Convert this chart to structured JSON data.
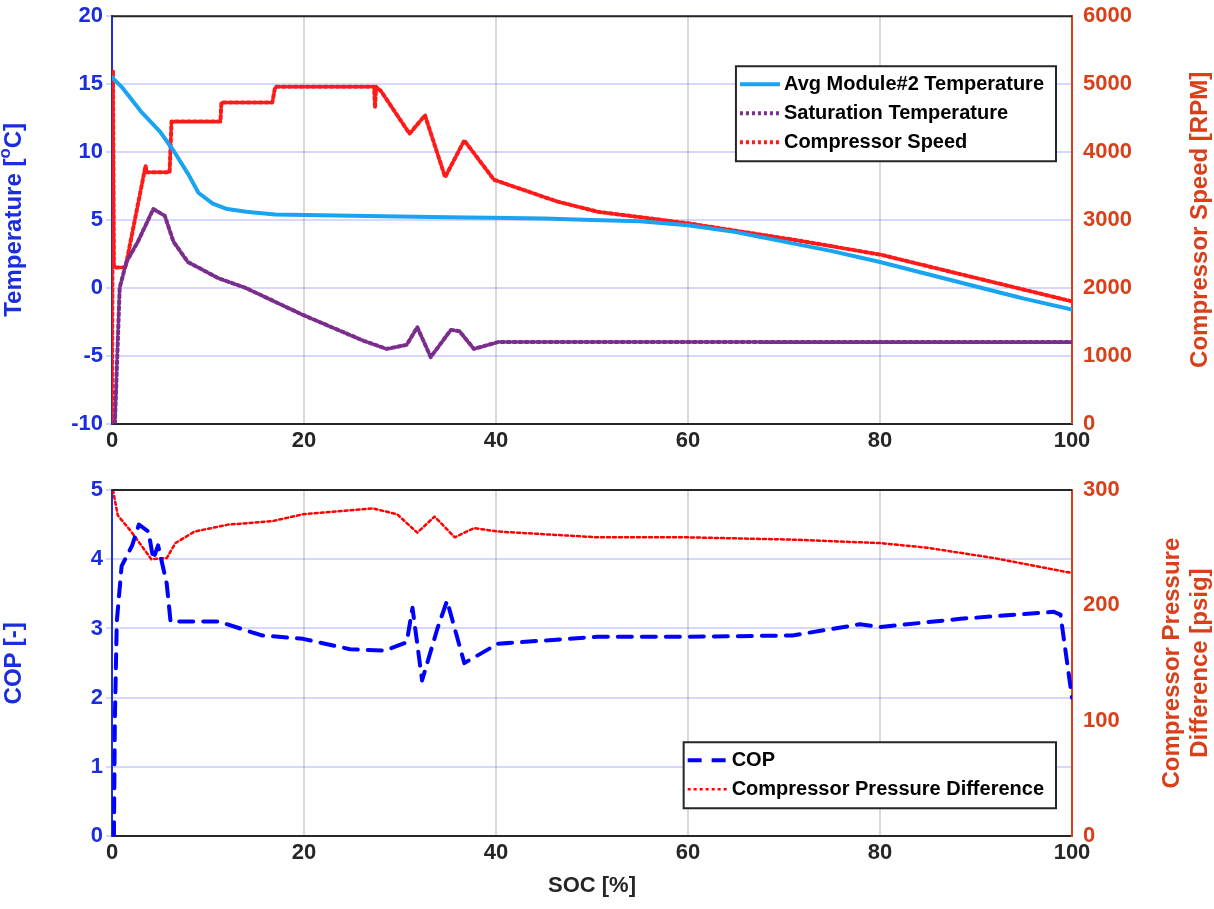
{
  "chart_data": [
    {
      "type": "line",
      "ylabel": "Temperature [$^{o}$C]",
      "y2label": "Compressor Speed [RPM]",
      "xlim": [
        0,
        100
      ],
      "xticks": [
        0,
        20,
        40,
        60,
        80,
        100
      ],
      "ylim": [
        -10,
        20
      ],
      "yticks": [
        -10,
        -5,
        0,
        5,
        10,
        15,
        20
      ],
      "y2lim": [
        0,
        6000
      ],
      "y2ticks": [
        0,
        1000,
        2000,
        3000,
        4000,
        5000,
        6000
      ],
      "grid": true,
      "legend": "top right",
      "marker": "none",
      "series": [
        {
          "name": "Avg Module#2 Temperature",
          "color": "#1aa3f0",
          "line_style": "solid",
          "x": [
            0,
            1,
            3,
            5,
            6.5,
            8,
            9,
            10.5,
            12,
            14,
            17,
            25,
            35,
            45,
            50,
            55,
            60,
            65,
            70,
            75,
            80,
            85,
            90,
            95,
            100
          ],
          "values": [
            15.5,
            14.8,
            13,
            11.5,
            10,
            8.3,
            7,
            6.2,
            5.8,
            5.6,
            5.4,
            5.3,
            5.2,
            5.1,
            5,
            4.9,
            4.6,
            4.1,
            3.4,
            2.7,
            1.9,
            1,
            0.1,
            -0.8,
            -1.6
          ]
        },
        {
          "name": "Saturation Temperature",
          "color": "#7b2d8e",
          "line_style": "dotted",
          "x": [
            0.3,
            0.8,
            1.5,
            2.7,
            4.3,
            5.5,
            6.4,
            7.9,
            11.1,
            13.9,
            19.9,
            26.2,
            28.6,
            30.7,
            31.8,
            33.2,
            35.3,
            36.2,
            37.7,
            40.2,
            50,
            60,
            70,
            80,
            90,
            100
          ],
          "values": [
            -10,
            0,
            1.9,
            3.4,
            5.8,
            5.3,
            3.4,
            1.9,
            0.7,
            0,
            -2,
            -3.9,
            -4.5,
            -4.2,
            -2.9,
            -5.1,
            -3.1,
            -3.2,
            -4.5,
            -4,
            -4,
            -4,
            -4,
            -4,
            -4,
            -4
          ]
        },
        {
          "name": "Compressor Speed",
          "color": "#ff1a1a",
          "line_style": "dotted",
          "axis": "y2",
          "x": [
            0,
            0.1,
            0.2,
            1.4,
            3.5,
            3.6,
            6,
            6.2,
            11.3,
            11.4,
            16.7,
            17,
            27.3,
            27.4,
            27.5,
            28,
            31,
            32.6,
            34.7,
            36.7,
            39.8,
            46.4,
            50.6,
            60,
            70.9,
            80,
            88.4,
            100
          ],
          "values": [
            0,
            5200,
            2300,
            2300,
            3800,
            3700,
            3700,
            4450,
            4450,
            4730,
            4730,
            4960,
            4960,
            4650,
            4960,
            4900,
            4270,
            4540,
            3630,
            4170,
            3590,
            3270,
            3120,
            2950,
            2710,
            2490,
            2200,
            1800
          ]
        }
      ]
    },
    {
      "type": "line",
      "xlabel": "SOC [%]",
      "ylabel": "COP [-]",
      "y2label": "Compressor Pressure Difference [psig]",
      "xlim": [
        0,
        100
      ],
      "xticks": [
        0,
        20,
        40,
        60,
        80,
        100
      ],
      "ylim": [
        0,
        5
      ],
      "yticks": [
        0,
        1,
        2,
        3,
        4,
        5
      ],
      "y2lim": [
        0,
        300
      ],
      "y2ticks": [
        0,
        100,
        200,
        300
      ],
      "grid": true,
      "legend": "bottom right",
      "marker": "none",
      "series": [
        {
          "name": "COP",
          "color": "#0000ff",
          "line_style": "dashed",
          "x": [
            0.2,
            0.3,
            0.5,
            1,
            2.1,
            2.8,
            3.8,
            4.3,
            4.8,
            5.7,
            6.1,
            6.3,
            11.1,
            15.6,
            19.9,
            24.8,
            28.4,
            30.7,
            31.3,
            32.3,
            33.9,
            34.9,
            36.7,
            40.2,
            50.6,
            60,
            70.9,
            77.9,
            80,
            88.4,
            98.1,
            98.8,
            100
          ],
          "values": [
            0,
            1.7,
            3.1,
            3.9,
            4.2,
            4.5,
            4.4,
            4,
            4.2,
            3.65,
            3.1,
            3.1,
            3.1,
            2.9,
            2.85,
            2.7,
            2.68,
            2.8,
            3.3,
            2.25,
            3,
            3.4,
            2.5,
            2.78,
            2.88,
            2.88,
            2.9,
            3.06,
            3.02,
            3.14,
            3.24,
            3.2,
            2
          ]
        },
        {
          "name": "Compressor Pressure Difference",
          "color": "#ff0000",
          "line_style": "dotted",
          "axis": "y2",
          "x": [
            0.1,
            0.6,
            2,
            4.1,
            5.7,
            6.6,
            8.6,
            12.1,
            16.7,
            19.9,
            27.2,
            29.7,
            31.8,
            33.6,
            35.7,
            37.7,
            40.2,
            50.6,
            60,
            70.9,
            80,
            84.9,
            91.9,
            100
          ],
          "values": [
            300,
            278,
            264,
            240,
            241,
            254,
            264,
            270,
            273,
            279,
            284,
            279,
            263,
            277,
            259,
            267,
            264,
            259,
            259,
            257,
            254,
            250,
            241,
            228
          ]
        }
      ]
    }
  ]
}
